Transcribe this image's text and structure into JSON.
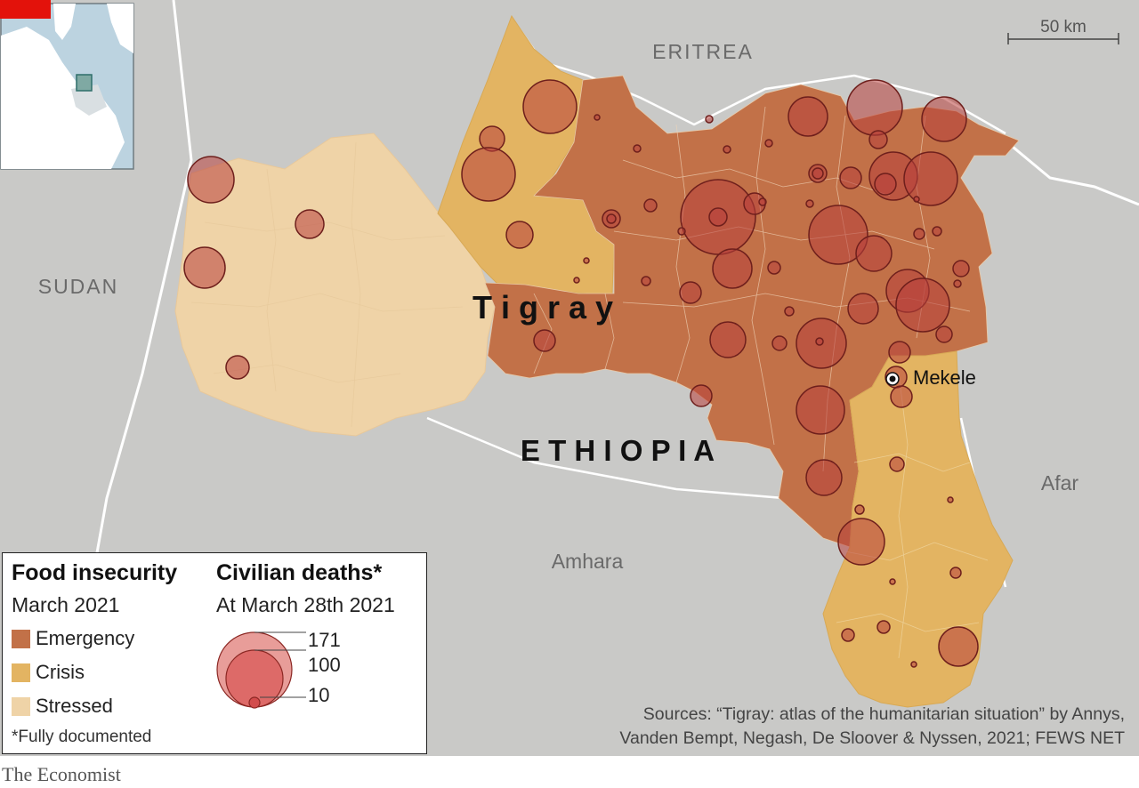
{
  "map": {
    "labels": {
      "eritrea": "ERITREA",
      "sudan": "SUDAN",
      "tigray": "T i g r a y",
      "ethiopia": "E T H I O P I A",
      "afar": "Afar",
      "amhara": "Amhara",
      "mekele": "Mekele"
    },
    "scale_bar": "50 km",
    "colors": {
      "background": "#c9c9c7",
      "emergency": "#c27148",
      "crisis": "#e3b462",
      "stressed": "#efd3a7",
      "death_circle": "#b8403c",
      "locator_sea": "#bcd3e0",
      "locator_land": "#ffffff",
      "locator_box": "#4a9090"
    }
  },
  "legend": {
    "food_title": "Food insecurity",
    "food_subtitle": "March 2021",
    "items": [
      {
        "label": "Emergency",
        "color": "#c27148"
      },
      {
        "label": "Crisis",
        "color": "#e3b462"
      },
      {
        "label": "Stressed",
        "color": "#efd3a7"
      }
    ],
    "deaths_title": "Civilian deaths*",
    "deaths_subtitle": "At March 28th 2021",
    "circle_values": [
      "171",
      "100",
      "10"
    ],
    "note": "*Fully documented"
  },
  "sources": {
    "line1": "Sources: “Tigray: atlas of the humanitarian situation” by Annys,",
    "line2": "Vanden Bempt, Negash, De Sloover & Nyssen, 2021; FEWS NET"
  },
  "brand": "The Economist"
}
